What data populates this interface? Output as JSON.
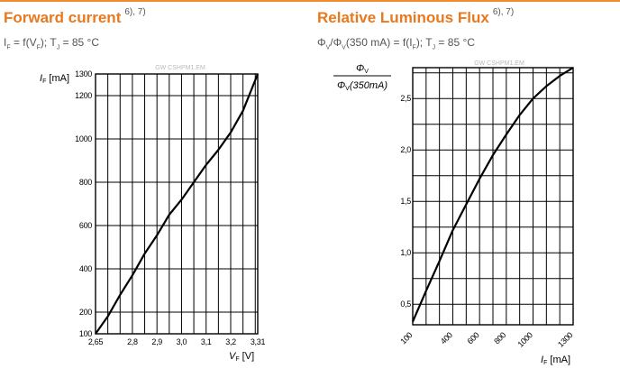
{
  "colors": {
    "title": "#e8791e",
    "line": "#000000",
    "watermark": "#bbbbbb"
  },
  "chart_data": [
    {
      "type": "line",
      "title": "Forward current",
      "title_note": "6), 7)",
      "subtitle": "I_F = f(V_F); T_J = 85 °C",
      "watermark": "GW CSHPM1.EM",
      "xlabel": "V_F [V]",
      "ylabel": "I_F [mA]",
      "xlim": [
        2.65,
        3.31
      ],
      "ylim": [
        100,
        1300
      ],
      "x_tick_labels": [
        "2,65",
        "2,8",
        "2,9",
        "3,0",
        "3,1",
        "3,2",
        "3,31"
      ],
      "y_tick_labels": [
        "100",
        "200",
        "400",
        "600",
        "800",
        "1000",
        "1200",
        "1300"
      ],
      "grid": true,
      "series": [
        {
          "x": [
            2.65,
            2.7,
            2.75,
            2.8,
            2.85,
            2.9,
            2.95,
            3.0,
            3.05,
            3.1,
            3.15,
            3.2,
            3.25,
            3.31
          ],
          "y": [
            100,
            180,
            280,
            370,
            470,
            555,
            650,
            720,
            800,
            880,
            950,
            1030,
            1130,
            1300
          ]
        }
      ]
    },
    {
      "type": "line",
      "title": "Relative Luminous Flux",
      "title_note": "6), 7)",
      "subtitle": "Φ_V/Φ_V(350 mA) = f(I_F); T_J = 85 °C",
      "watermark": "GW CSHPM1.EM",
      "xlabel": "I_F [mA]",
      "ylabel_numerator": "Φ_V",
      "ylabel_denominator": "Φ_V(350mA)",
      "xlim": [
        100,
        1300
      ],
      "ylim": [
        0.3,
        2.8
      ],
      "x_tick_labels": [
        "100",
        "400",
        "600",
        "800",
        "1000",
        "1300"
      ],
      "y_tick_labels": [
        "0,5",
        "1,0",
        "1,5",
        "2,0",
        "2,5"
      ],
      "grid": true,
      "series": [
        {
          "x": [
            100,
            200,
            300,
            400,
            500,
            600,
            700,
            800,
            900,
            1000,
            1100,
            1200,
            1300
          ],
          "y": [
            0.33,
            0.63,
            0.92,
            1.22,
            1.47,
            1.72,
            1.95,
            2.15,
            2.34,
            2.5,
            2.62,
            2.72,
            2.8
          ]
        }
      ]
    }
  ],
  "labels": {
    "left": {
      "title": "Forward current",
      "note": "6), 7)",
      "sub_I": "I",
      "sub_F": "F",
      "sub_eq": " = f(V",
      "sub_F2": "F",
      "sub_tj": "); T",
      "sub_J": "J",
      "sub_temp": " = 85 °C",
      "y_I": "I",
      "y_F": "F",
      "y_unit": " [mA]",
      "x_V": "V",
      "x_F": "F",
      "x_unit": " [V]"
    },
    "right": {
      "title": "Relative Luminous Flux",
      "note": "6), 7)",
      "sub_phi": "Φ",
      "sub_v": "V",
      "sub_slash": "/Φ",
      "sub_v2": "V",
      "sub_eq": "(350 mA) = f(I",
      "sub_F": "F",
      "sub_tj": "); T",
      "sub_J": "J",
      "sub_temp": " = 85 °C",
      "num_phi": "Φ",
      "num_v": "V",
      "den_phi": "Φ",
      "den_v": "V",
      "den_rest": "(350mA)",
      "x_I": "I",
      "x_F": "F",
      "x_unit": " [mA]"
    }
  }
}
